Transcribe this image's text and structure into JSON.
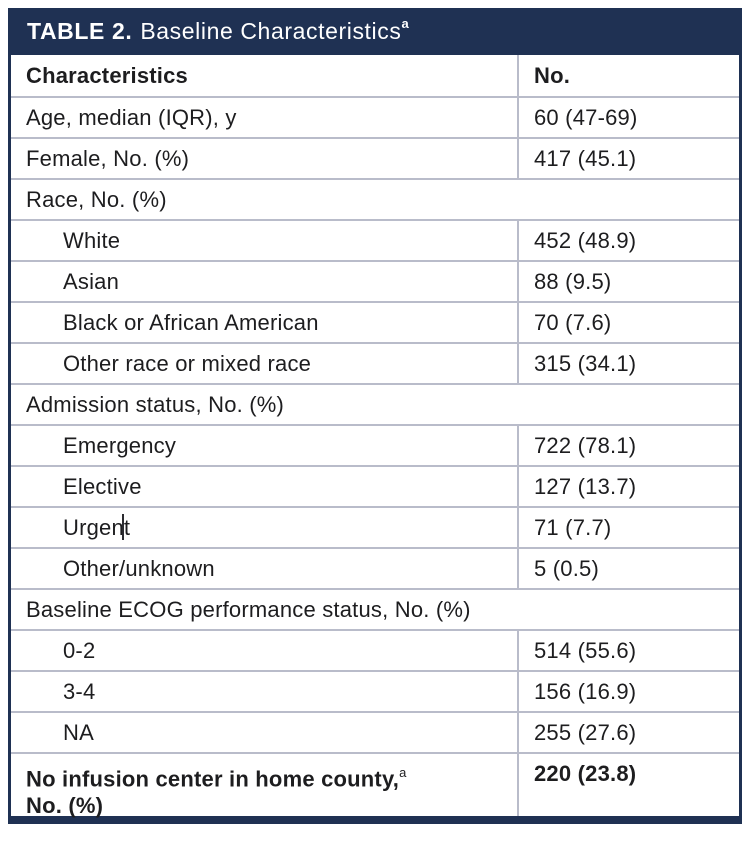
{
  "table": {
    "title": {
      "label": "TABLE 2.",
      "text": "Baseline Characteristics",
      "superscript": "a"
    },
    "columns": [
      {
        "label": "Characteristics"
      },
      {
        "label": "No."
      }
    ],
    "rows": [
      {
        "type": "data",
        "label": "Age, median (IQR), y",
        "value": "60 (47-69)"
      },
      {
        "type": "data",
        "label": "Female, No. (%)",
        "value": "417 (45.1)"
      },
      {
        "type": "section",
        "label": "Race, No. (%)"
      },
      {
        "type": "data",
        "label": "White",
        "value": "452 (48.9)",
        "indent": true
      },
      {
        "type": "data",
        "label": "Asian",
        "value": "88 (9.5)",
        "indent": true
      },
      {
        "type": "data",
        "label": "Black or African American",
        "value": "70 (7.6)",
        "indent": true
      },
      {
        "type": "data",
        "label": "Other race or mixed race",
        "value": "315 (34.1)",
        "indent": true
      },
      {
        "type": "section",
        "label": "Admission status, No. (%)"
      },
      {
        "type": "data",
        "label": "Emergency",
        "value": "722 (78.1)",
        "indent": true
      },
      {
        "type": "data",
        "label": "Elective",
        "value": "127 (13.7)",
        "indent": true
      },
      {
        "type": "data",
        "label": "Urgent",
        "value": "71 (7.7)",
        "indent": true,
        "has_text_cursor": true
      },
      {
        "type": "data",
        "label": "Other/unknown",
        "value": "5 (0.5)",
        "indent": true
      },
      {
        "type": "section",
        "label": "Baseline ECOG performance status, No. (%)"
      },
      {
        "type": "data",
        "label": "0-2",
        "value": "514 (55.6)",
        "indent": true
      },
      {
        "type": "data",
        "label": "3-4",
        "value": "156 (16.9)",
        "indent": true
      },
      {
        "type": "data",
        "label": "NA",
        "value": "255 (27.6)",
        "indent": true
      },
      {
        "type": "data-bold",
        "label": "No infusion center in home county,",
        "superscript": "a",
        "label_line2": "No. (%)",
        "value": "220 (23.8)"
      }
    ]
  },
  "colors": {
    "header_navy": "#1f3153",
    "divider_gray": "#b9bcca",
    "text": "#1d1d1f",
    "background": "#ffffff"
  }
}
